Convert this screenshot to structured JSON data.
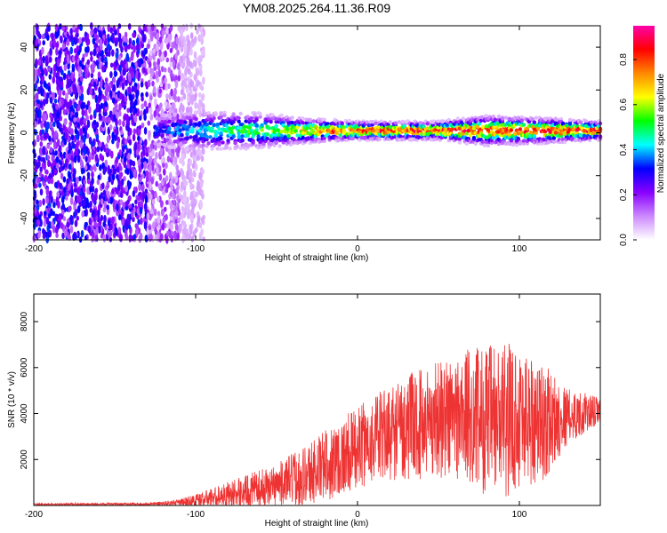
{
  "title": "YM08.2025.264.11.36.R09",
  "chart_data": [
    {
      "type": "heatmap",
      "xlabel": "Height of straight line (km)",
      "ylabel": "Frequency (Hz)",
      "xlim": [
        -200,
        150
      ],
      "ylim": [
        -50,
        50
      ],
      "xticks": [
        -200,
        -100,
        0,
        100
      ],
      "yticks": [
        -40,
        -20,
        0,
        20,
        40
      ],
      "colorbar": {
        "label": "Normalized spectral amplitude",
        "range": [
          0,
          0.95
        ],
        "ticks": [
          0.0,
          0.2,
          0.4,
          0.6,
          0.8
        ],
        "colors": [
          "#ffffff",
          "#cc88ff",
          "#8800ff",
          "#0000ff",
          "#00ffff",
          "#00ff00",
          "#ffff00",
          "#ff8800",
          "#ff0000",
          "#ff00aa"
        ]
      },
      "features": {
        "noise_region_km": [
          -200,
          -120
        ],
        "ridge_start_km": -125,
        "ridge_center_hz": 1,
        "ridge_profile": [
          {
            "x": -125,
            "halfwidth_hz": 6,
            "peak": 0.35
          },
          {
            "x": -100,
            "halfwidth_hz": 7,
            "peak": 0.45
          },
          {
            "x": -60,
            "halfwidth_hz": 6,
            "peak": 0.6
          },
          {
            "x": -30,
            "halfwidth_hz": 4,
            "peak": 0.75
          },
          {
            "x": 0,
            "halfwidth_hz": 3,
            "peak": 0.9
          },
          {
            "x": 50,
            "halfwidth_hz": 3,
            "peak": 0.9
          },
          {
            "x": 80,
            "halfwidth_hz": 5,
            "peak": 0.85
          },
          {
            "x": 120,
            "halfwidth_hz": 4,
            "peak": 0.9
          },
          {
            "x": 150,
            "halfwidth_hz": 3,
            "peak": 0.9
          }
        ]
      }
    },
    {
      "type": "line",
      "xlabel": "Height of straight line (km)",
      "ylabel": "SNR (10 * v/v)",
      "xlim": [
        -200,
        150
      ],
      "ylim": [
        0,
        9200
      ],
      "xticks": [
        -200,
        -100,
        0,
        100
      ],
      "yticks": [
        2000,
        4000,
        6000,
        8000
      ],
      "color": "#ee3333",
      "envelope": [
        {
          "x": -200,
          "base": 50,
          "amp": 50
        },
        {
          "x": -130,
          "base": 60,
          "amp": 60
        },
        {
          "x": -110,
          "base": 120,
          "amp": 150
        },
        {
          "x": -90,
          "base": 350,
          "amp": 400
        },
        {
          "x": -70,
          "base": 600,
          "amp": 700
        },
        {
          "x": -50,
          "base": 900,
          "amp": 900
        },
        {
          "x": -30,
          "base": 1400,
          "amp": 1400
        },
        {
          "x": -10,
          "base": 2100,
          "amp": 1700
        },
        {
          "x": 10,
          "base": 2900,
          "amp": 1900
        },
        {
          "x": 30,
          "base": 3400,
          "amp": 2300
        },
        {
          "x": 50,
          "base": 3800,
          "amp": 2600
        },
        {
          "x": 70,
          "base": 3900,
          "amp": 3000
        },
        {
          "x": 85,
          "base": 3600,
          "amp": 3500
        },
        {
          "x": 100,
          "base": 3900,
          "amp": 3200
        },
        {
          "x": 115,
          "base": 3600,
          "amp": 2600
        },
        {
          "x": 130,
          "base": 3900,
          "amp": 1200
        },
        {
          "x": 150,
          "base": 4100,
          "amp": 600
        }
      ]
    }
  ]
}
